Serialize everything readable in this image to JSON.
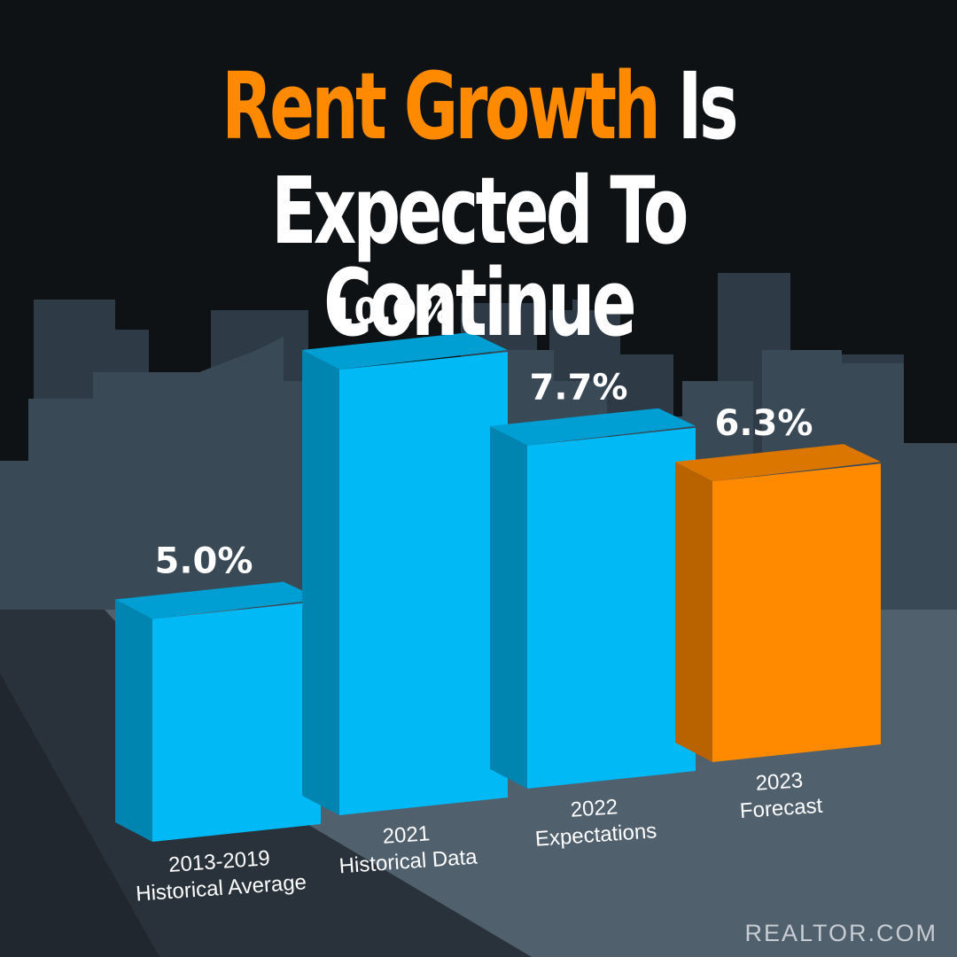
{
  "title": {
    "highlight": "Rent Growth",
    "rest_line1": "Is",
    "line2": "Expected To Continue"
  },
  "source": "REALTOR.COM",
  "colors": {
    "background": "#0f1215",
    "skyline": "#3a4956",
    "ground": "#50606d",
    "bar_blue": "#00b9f5",
    "bar_orange": "#ff8a00",
    "title_accent": "#ff8a00"
  },
  "chart_data": {
    "type": "bar",
    "style": "3d-columns",
    "categories": [
      [
        "2013-2019",
        "Historical Average"
      ],
      [
        "2021",
        "Historical Data"
      ],
      [
        "2022",
        "Expectations"
      ],
      [
        "2023",
        "Forecast"
      ]
    ],
    "values": [
      5.0,
      10.0,
      7.7,
      6.3
    ],
    "value_labels": [
      "5.0%",
      "10.0%",
      "7.7%",
      "6.3%"
    ],
    "highlighted_index": 3,
    "xlabel": "",
    "ylabel": "",
    "grid": false,
    "legend": "none"
  }
}
